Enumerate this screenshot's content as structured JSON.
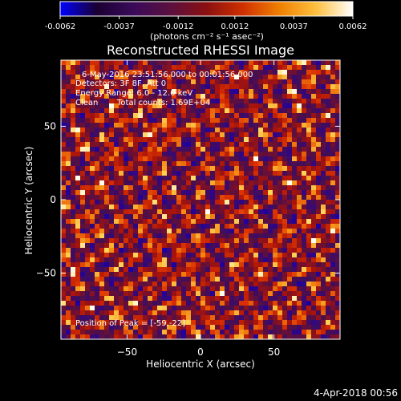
{
  "colorbar": {
    "ticks": [
      "-0.0062",
      "-0.0037",
      "-0.0012",
      "0.0012",
      "0.0037",
      "0.0062"
    ],
    "tick_values": [
      -0.0062,
      -0.0037,
      -0.0012,
      0.0012,
      0.0037,
      0.0062
    ],
    "range": [
      -0.0062,
      0.0062
    ],
    "units": "(photons cm⁻² s⁻¹ asec⁻²)",
    "stops": [
      "#0000ff",
      "#1a0033",
      "#3a0a5a",
      "#5a1040",
      "#8a1010",
      "#d03000",
      "#f08000",
      "#ffc040",
      "#ffffff"
    ]
  },
  "title": "Reconstructed RHESSI Image",
  "info": {
    "time_range": "6-May-2016 23:51:56.000 to 00:01:56.000",
    "detectors": "Detectors: 3F 8F, Att 0",
    "energy": "Energy Range: 6.0 - 12.0 keV",
    "method": "Clean",
    "counts": "Total counts: 1.69E+04",
    "peak": "Position of Peak = [-59,-22]"
  },
  "footer_date": "4-Apr-2018 00:56",
  "chart_data": {
    "type": "heatmap",
    "title": "Reconstructed RHESSI Image",
    "xlabel": "Heliocentric X (arcsec)",
    "ylabel": "Heliocentric Y (arcsec)",
    "xlim": [
      -95,
      95
    ],
    "ylim": [
      -95,
      95
    ],
    "x_ticks": [
      -50,
      0,
      50
    ],
    "y_ticks": [
      -50,
      0,
      50
    ],
    "x_tick_labels": [
      "−50",
      "0",
      "50"
    ],
    "y_tick_labels": [
      "−50",
      "0",
      "50"
    ],
    "peak_position": [
      -59,
      -22
    ],
    "grid": false
  }
}
